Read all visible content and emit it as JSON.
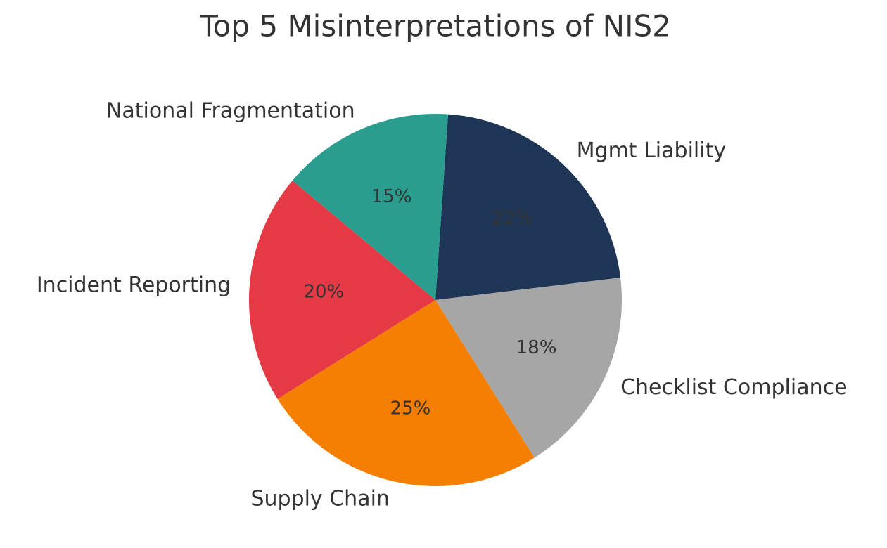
{
  "chart_data": {
    "type": "pie",
    "title": "Top 5 Misinterpretations of NIS2",
    "categories": [
      "Mgmt Liability",
      "Checklist Compliance",
      "Supply Chain",
      "Incident Reporting",
      "National Fragmentation"
    ],
    "values": [
      22,
      18,
      25,
      20,
      15
    ],
    "value_labels": [
      "22%",
      "18%",
      "25%",
      "20%",
      "15%"
    ],
    "colors": [
      "#1f3556",
      "#a6a6a6",
      "#f57f00",
      "#e63946",
      "#2a9d8f"
    ]
  }
}
